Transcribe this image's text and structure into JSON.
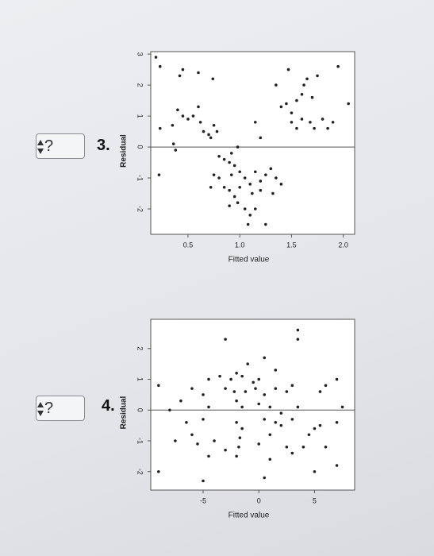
{
  "questions": [
    {
      "select": "?",
      "number": "3."
    },
    {
      "select": "?",
      "number": "4."
    }
  ],
  "chart_data": [
    {
      "type": "scatter",
      "x_label": "Fitted value",
      "y_label": "Residual",
      "color": "#222222",
      "xlim": [
        0.14,
        2.11
      ],
      "ylim": [
        -2.82,
        3.08
      ],
      "xticks": [
        0.5,
        {
          "value": 1.0,
          "label": "1.0"
        },
        1.5,
        {
          "value": 2.0,
          "label": "2.0"
        }
      ],
      "yticks": [
        -2,
        -1,
        0,
        1,
        2,
        3
      ],
      "hline": 0,
      "x": [
        0.19,
        0.23,
        0.42,
        0.45,
        0.6,
        0.74,
        0.35,
        0.23,
        0.36,
        0.38,
        0.22,
        0.4,
        0.45,
        0.5,
        0.55,
        0.6,
        0.62,
        0.65,
        0.7,
        0.75,
        0.78,
        0.72,
        0.8,
        0.85,
        0.9,
        0.92,
        0.98,
        0.95,
        0.75,
        0.8,
        0.85,
        0.9,
        0.92,
        1.0,
        1.05,
        1.1,
        1.15,
        1.2,
        1.25,
        1.3,
        1.35,
        1.4,
        1.12,
        1.2,
        1.0,
        0.95,
        1.05,
        0.9,
        0.98,
        1.1,
        1.15,
        1.08,
        1.25,
        0.72,
        1.32,
        1.15,
        1.2,
        1.4,
        1.45,
        1.5,
        1.55,
        1.6,
        1.62,
        1.65,
        1.7,
        1.75,
        1.55,
        1.6,
        1.68,
        1.72,
        1.8,
        1.85,
        1.9,
        1.95,
        2.05,
        1.35,
        1.47,
        1.5
      ],
      "values": [
        2.9,
        2.6,
        2.3,
        2.5,
        2.4,
        2.2,
        0.7,
        0.6,
        0.1,
        -0.1,
        -0.9,
        1.2,
        1.0,
        0.9,
        1.0,
        1.3,
        0.8,
        0.5,
        0.4,
        0.7,
        0.5,
        0.3,
        -0.3,
        -0.4,
        -0.5,
        -0.2,
        0.0,
        -0.6,
        -0.9,
        -1.0,
        -1.3,
        -1.4,
        -0.9,
        -0.8,
        -1.0,
        -1.2,
        -0.8,
        -1.1,
        -0.9,
        -0.7,
        -1.0,
        -1.2,
        -1.5,
        -1.4,
        -1.3,
        -1.6,
        -2.0,
        -1.9,
        -1.8,
        -2.2,
        -2.0,
        -2.5,
        -2.5,
        -1.3,
        -1.5,
        0.8,
        0.3,
        1.3,
        1.4,
        1.1,
        1.5,
        1.7,
        2.0,
        2.2,
        1.6,
        2.3,
        0.6,
        0.9,
        0.8,
        0.6,
        0.9,
        0.6,
        0.8,
        2.6,
        1.4,
        2.0,
        2.5,
        0.8
      ]
    },
    {
      "type": "scatter",
      "x_label": "Fitted value",
      "y_label": "Residual",
      "color": "#222222",
      "xlim": [
        -9.7,
        8.6
      ],
      "ylim": [
        -2.6,
        2.95
      ],
      "xticks": [
        -5,
        0,
        5
      ],
      "yticks": [
        -2,
        -1,
        0,
        1,
        2
      ],
      "hline": 0,
      "x": [
        -3,
        3.5,
        3.5,
        0.5,
        -1,
        1.5,
        -4.5,
        -3.5,
        -2.5,
        -2,
        -1.5,
        -0.5,
        0,
        -3,
        -2.2,
        -1.2,
        -0.3,
        0.5,
        1.5,
        2.5,
        3,
        5.5,
        6,
        7,
        -9,
        -6,
        -5,
        -7,
        -8,
        -4.5,
        -2,
        -1.5,
        0,
        1,
        2,
        3.5,
        7.5,
        -2,
        -1.5,
        -1.7,
        -1.8,
        0.5,
        1.5,
        2,
        3,
        -5,
        -6.5,
        -6,
        -5.5,
        -7.5,
        -4,
        -3,
        0,
        1,
        2.5,
        3,
        4.5,
        5,
        5.5,
        7,
        -4.5,
        -2,
        1,
        4,
        6,
        -5,
        -9,
        0.5,
        5,
        7
      ],
      "values": [
        2.3,
        2.6,
        2.3,
        1.7,
        1.5,
        1.3,
        1.0,
        1.1,
        1.0,
        1.2,
        1.1,
        0.9,
        1.0,
        0.7,
        0.6,
        0.6,
        0.7,
        0.5,
        0.7,
        0.6,
        0.8,
        0.6,
        0.8,
        1.0,
        0.8,
        0.7,
        0.5,
        0.3,
        0.0,
        0.1,
        0.3,
        0.1,
        0.2,
        0.1,
        -0.1,
        0.1,
        0.1,
        -0.4,
        -0.6,
        -0.9,
        -1.2,
        -0.3,
        -0.4,
        -0.5,
        -0.3,
        -0.3,
        -0.4,
        -0.8,
        -1.1,
        -1.0,
        -1.0,
        -1.3,
        -1.1,
        -0.8,
        -1.2,
        -1.4,
        -0.8,
        -0.6,
        -0.5,
        -0.4,
        -1.5,
        -1.5,
        -1.6,
        -1.2,
        -1.2,
        -2.3,
        -2.0,
        -2.2,
        -2.0,
        -1.8
      ]
    }
  ]
}
